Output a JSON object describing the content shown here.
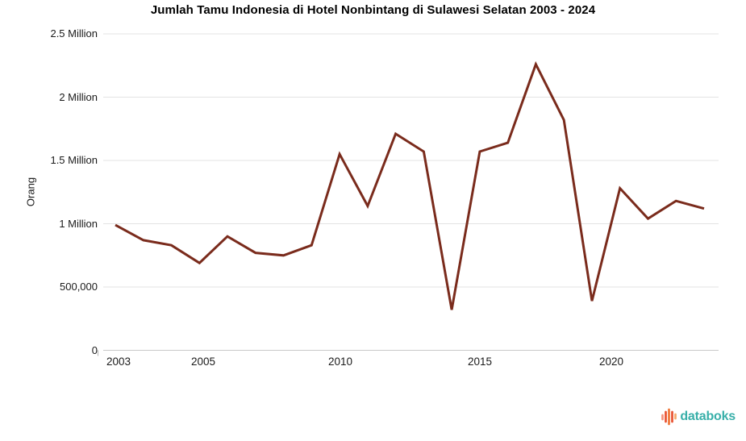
{
  "chart_data": {
    "type": "line",
    "title": "Jumlah Tamu Indonesia di Hotel Nonbintang di Sulawesi Selatan 2003 - 2024",
    "ylabel": "Orang",
    "xlabel": "",
    "x": [
      2003,
      2004,
      2005,
      2006,
      2007,
      2008,
      2009,
      2010,
      2011,
      2012,
      2013,
      2014,
      2015,
      2016,
      2017,
      2018,
      2019,
      2020,
      2021,
      2022,
      2023,
      2024
    ],
    "series": [
      {
        "name": "Jumlah Tamu Indonesia di Hotel Nonbintang di Sulawesi Selatan",
        "values": [
          990000,
          870000,
          830000,
          690000,
          900000,
          770000,
          750000,
          830000,
          1550000,
          1140000,
          1710000,
          1570000,
          320000,
          1570000,
          1640000,
          2260000,
          1820000,
          390000,
          1280000,
          1040000,
          1180000,
          1120000
        ]
      }
    ],
    "ylim": [
      0,
      2500000
    ],
    "y_ticks": [
      {
        "value": 0,
        "label": "0"
      },
      {
        "value": 500000,
        "label": "500,000"
      },
      {
        "value": 1000000,
        "label": "1 Million"
      },
      {
        "value": 1500000,
        "label": "1.5 Million"
      },
      {
        "value": 2000000,
        "label": "2 Million"
      },
      {
        "value": 2500000,
        "label": "2.5 Million"
      }
    ],
    "x_tick_labels": [
      "2003",
      "2005",
      "2010",
      "2015",
      "2020"
    ],
    "grid": true,
    "legend": "none",
    "line_color": "#7a2b1c",
    "grid_color": "#e3e3e3",
    "baseline_color": "#c9c9c9",
    "axis_text_color": "#1a1a1a"
  },
  "branding": {
    "name": "databoks",
    "text_color": "#38AFA9",
    "icon_colors": [
      "#F4907A",
      "#E8502F",
      "#EF7434",
      "#E8502F",
      "#F4A869"
    ]
  }
}
